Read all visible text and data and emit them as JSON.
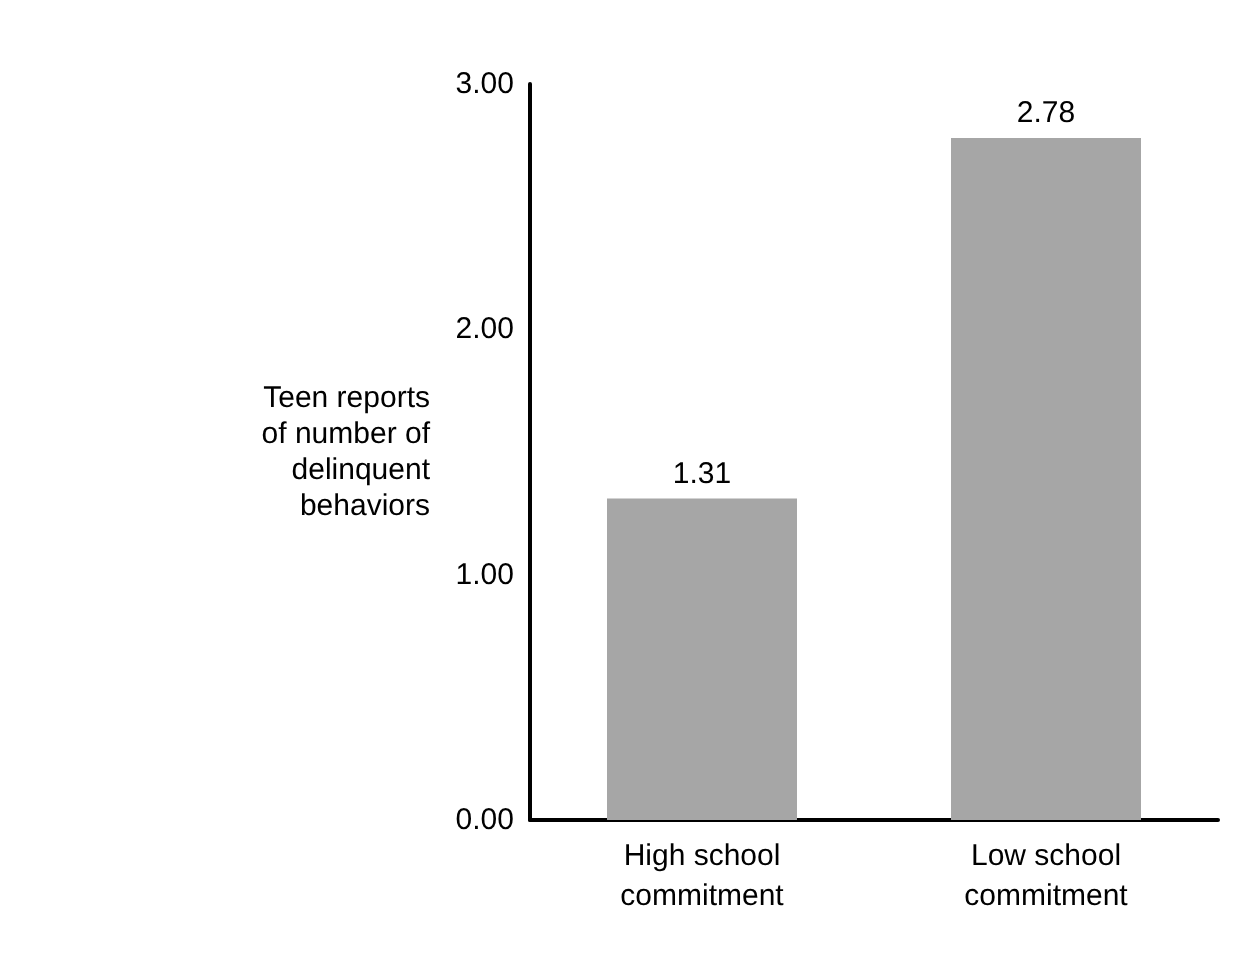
{
  "chart_data": {
    "type": "bar",
    "ylabel": "Teen reports\nof number of\ndelinquent\nbehaviors",
    "categories": [
      "High school\ncommitment",
      "Low school\ncommitment"
    ],
    "values": [
      1.31,
      2.78
    ],
    "color": "#a6a6a6",
    "ylim": [
      0,
      3
    ],
    "yticks": [
      {
        "value": 0,
        "label": "0.00"
      },
      {
        "value": 1,
        "label": "1.00"
      },
      {
        "value": 2,
        "label": "2.00"
      },
      {
        "value": 3,
        "label": "3.00"
      }
    ],
    "grid": false,
    "data_labels": true
  }
}
